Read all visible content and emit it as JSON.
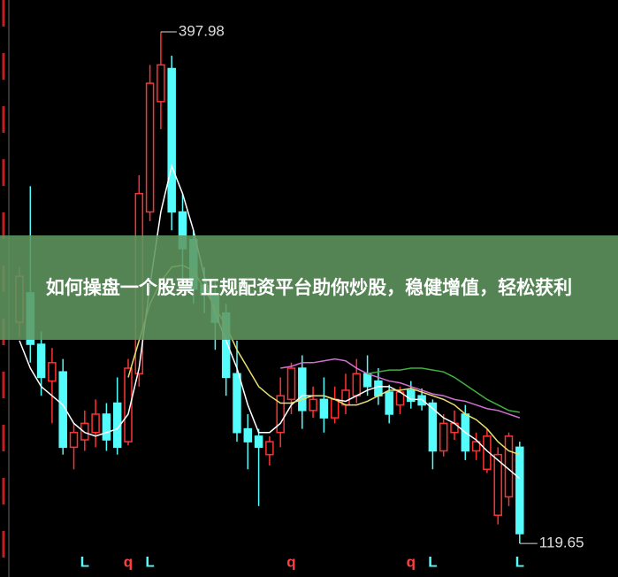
{
  "chart_data": {
    "type": "candlestick",
    "title": "如何操盘一个股票 正规配资平台助你炒股，稳健增值，轻松获利",
    "up_color": "#ff3232",
    "down_color": "#54fcfc",
    "ylim": [
      101.4,
      415.3
    ],
    "annotations": {
      "high": 397.98,
      "low": 119.65
    },
    "candles": [
      [
        240,
        265,
        270,
        232
      ],
      [
        256,
        228,
        314,
        218
      ],
      [
        228,
        210,
        235,
        200
      ],
      [
        208,
        218,
        226,
        185
      ],
      [
        213,
        172,
        220,
        168
      ],
      [
        172,
        180,
        185,
        160
      ],
      [
        176,
        185,
        192,
        170
      ],
      [
        180,
        190,
        198,
        172
      ],
      [
        190,
        176,
        196,
        170
      ],
      [
        196,
        172,
        210,
        168
      ],
      [
        175,
        215,
        220,
        173
      ],
      [
        212,
        310,
        320,
        205
      ],
      [
        300,
        370,
        380,
        295
      ],
      [
        360,
        380,
        397.98,
        345
      ],
      [
        378,
        300,
        385,
        290
      ],
      [
        300,
        280,
        310,
        262
      ],
      [
        285,
        258,
        290,
        250
      ],
      [
        260,
        255,
        270,
        245
      ],
      [
        255,
        240,
        262,
        225
      ],
      [
        245,
        210,
        250,
        200
      ],
      [
        212,
        180,
        230,
        175
      ],
      [
        182,
        175,
        190,
        160
      ],
      [
        178,
        172,
        182,
        140
      ],
      [
        168,
        175,
        178,
        162
      ],
      [
        180,
        200,
        210,
        172
      ],
      [
        198,
        215,
        218,
        190
      ],
      [
        215,
        192,
        222,
        182
      ],
      [
        192,
        198,
        205,
        188
      ],
      [
        198,
        188,
        210,
        180
      ],
      [
        188,
        198,
        205,
        185
      ],
      [
        195,
        203,
        212,
        190
      ],
      [
        200,
        212,
        220,
        196
      ],
      [
        212,
        205,
        222,
        200
      ],
      [
        208,
        200,
        215,
        195
      ],
      [
        202,
        190,
        206,
        185
      ],
      [
        195,
        202,
        205,
        190
      ],
      [
        203,
        197,
        208,
        193
      ],
      [
        200,
        195,
        204,
        192
      ],
      [
        196,
        170,
        198,
        160
      ],
      [
        170,
        185,
        190,
        167
      ],
      [
        180,
        185,
        192,
        176
      ],
      [
        190,
        170,
        195,
        165
      ],
      [
        170,
        175,
        180,
        165
      ],
      [
        160,
        178,
        182,
        158
      ],
      [
        135,
        168,
        172,
        130
      ],
      [
        145,
        178,
        180,
        140
      ],
      [
        172,
        125,
        175,
        119.65
      ]
    ],
    "series": [
      {
        "color": "#ffffff",
        "values": [
          230,
          215,
          205,
          200,
          195,
          185,
          180,
          178,
          180,
          182,
          190,
          215,
          260,
          300,
          325,
          310,
          290,
          265,
          245,
          230,
          215,
          195,
          180,
          180,
          185,
          195,
          200,
          200,
          200,
          198,
          197,
          200,
          203,
          205,
          205,
          202,
          198,
          198,
          193,
          188,
          185,
          180,
          176,
          170,
          165,
          160,
          155
        ]
      },
      {
        "color": "#e8e070",
        "values": [
          null,
          null,
          null,
          null,
          null,
          null,
          null,
          null,
          null,
          null,
          210,
          230,
          250,
          262,
          270,
          271,
          268,
          258,
          248,
          238,
          225,
          215,
          205,
          200,
          196,
          196,
          198,
          200,
          200,
          198,
          195,
          195,
          197,
          200,
          203,
          203,
          204,
          202,
          200,
          198,
          195,
          190,
          187,
          182,
          175,
          170,
          168
        ]
      },
      {
        "color": "#d070d0",
        "values": [
          null,
          null,
          null,
          null,
          null,
          null,
          null,
          null,
          null,
          null,
          null,
          null,
          null,
          null,
          null,
          null,
          null,
          null,
          null,
          null,
          null,
          null,
          null,
          null,
          215,
          216,
          218,
          218,
          219,
          220,
          219,
          215,
          212,
          210,
          208,
          207,
          205,
          203,
          201,
          200,
          198,
          197,
          195,
          193,
          192,
          190,
          188
        ]
      },
      {
        "color": "#40b040",
        "values": [
          null,
          null,
          null,
          null,
          null,
          null,
          null,
          null,
          null,
          null,
          null,
          null,
          null,
          null,
          null,
          null,
          null,
          null,
          null,
          null,
          null,
          null,
          null,
          null,
          null,
          null,
          null,
          null,
          null,
          null,
          null,
          null,
          212,
          213,
          214,
          214,
          215,
          215,
          214,
          213,
          210,
          206,
          202,
          198,
          195,
          192,
          191
        ]
      }
    ],
    "markers": [
      {
        "label": "L",
        "index": 6
      },
      {
        "label": "q",
        "index": 10
      },
      {
        "label": "L",
        "index": 12
      },
      {
        "label": "q",
        "index": 25
      },
      {
        "label": "q",
        "index": 36
      },
      {
        "label": "L",
        "index": 38
      },
      {
        "label": "L",
        "index": 46
      }
    ]
  }
}
